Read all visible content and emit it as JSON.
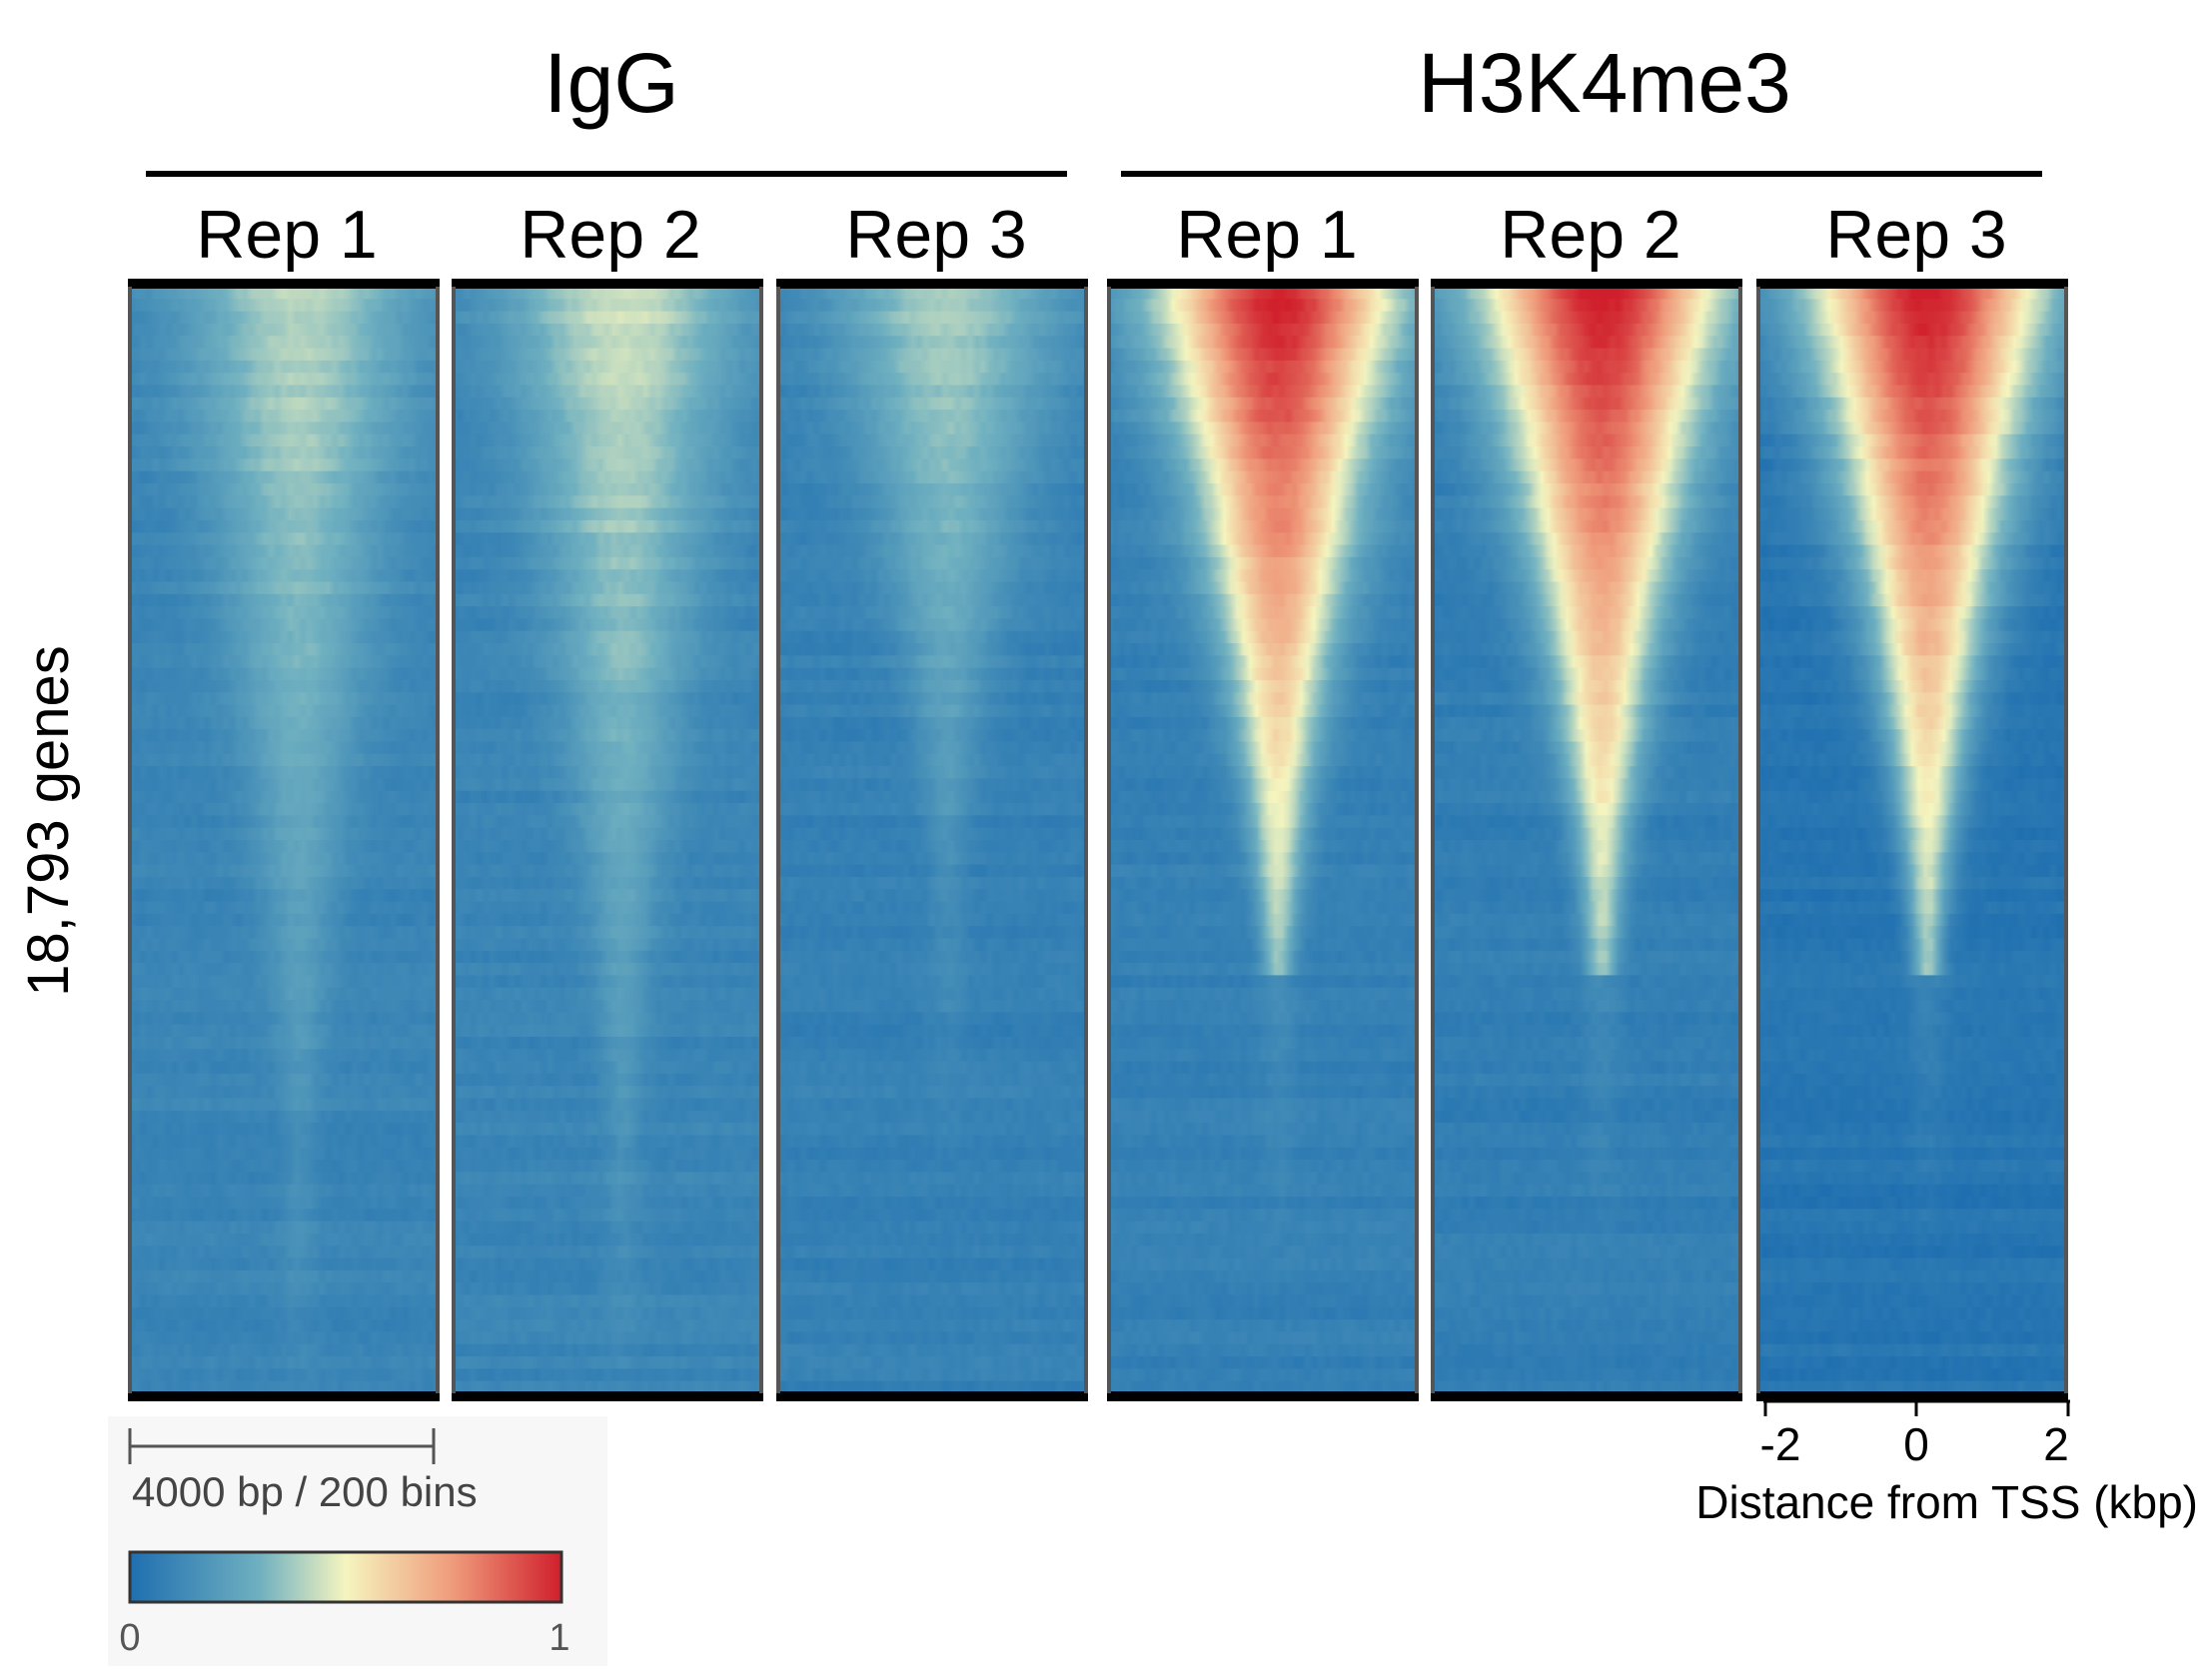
{
  "chart_data": {
    "type": "heatmap",
    "row_label": "18,793 genes",
    "groups": [
      {
        "name": "IgG",
        "replicates": [
          "Rep 1",
          "Rep 2",
          "Rep 3"
        ]
      },
      {
        "name": "H3K4me3",
        "replicates": [
          "Rep 1",
          "Rep 2",
          "Rep 3"
        ]
      }
    ],
    "panels": [
      {
        "group": "IgG",
        "name": "Rep 1",
        "peak_intensity": 0.42,
        "background": 0.1,
        "signal_extent": 0.8
      },
      {
        "group": "IgG",
        "name": "Rep 2",
        "peak_intensity": 0.45,
        "background": 0.1,
        "signal_extent": 0.78
      },
      {
        "group": "IgG",
        "name": "Rep 3",
        "peak_intensity": 0.4,
        "background": 0.08,
        "signal_extent": 0.55
      },
      {
        "group": "H3K4me3",
        "name": "Rep 1",
        "peak_intensity": 1.0,
        "background": 0.08,
        "signal_extent": 0.62
      },
      {
        "group": "H3K4me3",
        "name": "Rep 2",
        "peak_intensity": 1.0,
        "background": 0.07,
        "signal_extent": 0.62
      },
      {
        "group": "H3K4me3",
        "name": "Rep 3",
        "peak_intensity": 1.0,
        "background": 0.03,
        "signal_extent": 0.62
      }
    ],
    "x_axis": {
      "label": "Distance from TSS (kbp)",
      "range": [
        -2,
        2
      ],
      "ticks": [
        {
          "value": -2,
          "label": "-2"
        },
        {
          "value": 0,
          "label": "0"
        },
        {
          "value": 2,
          "label": "2"
        }
      ]
    },
    "scale_bar": {
      "label": "4000 bp / 200 bins"
    },
    "colorbar": {
      "range": [
        0,
        1
      ],
      "min_label": "0",
      "max_label": "1",
      "stops": [
        {
          "offset": 0.0,
          "color": "#1f6fb0"
        },
        {
          "offset": 0.3,
          "color": "#6fb0c0"
        },
        {
          "offset": 0.5,
          "color": "#f5f5bf"
        },
        {
          "offset": 0.75,
          "color": "#ef9a7a"
        },
        {
          "offset": 1.0,
          "color": "#d01f2c"
        }
      ]
    }
  }
}
